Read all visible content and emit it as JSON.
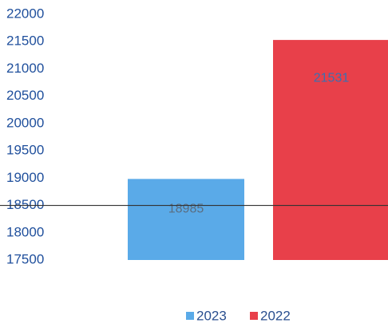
{
  "chart_data": {
    "type": "bar",
    "categories": [
      null
    ],
    "series": [
      {
        "name": "2023",
        "color": "#5aaae8",
        "values": [
          18985
        ],
        "label_color": "#5a6d80"
      },
      {
        "name": "2022",
        "color": "#e8404a",
        "values": [
          21531
        ],
        "label_color": "#3b6fb0"
      }
    ],
    "ylim": [
      17500,
      22000
    ],
    "yticks": [
      17500,
      18000,
      18500,
      19000,
      19500,
      20000,
      20500,
      21000,
      21500,
      22000
    ],
    "reference_line": 18500,
    "legend": "bottom"
  }
}
